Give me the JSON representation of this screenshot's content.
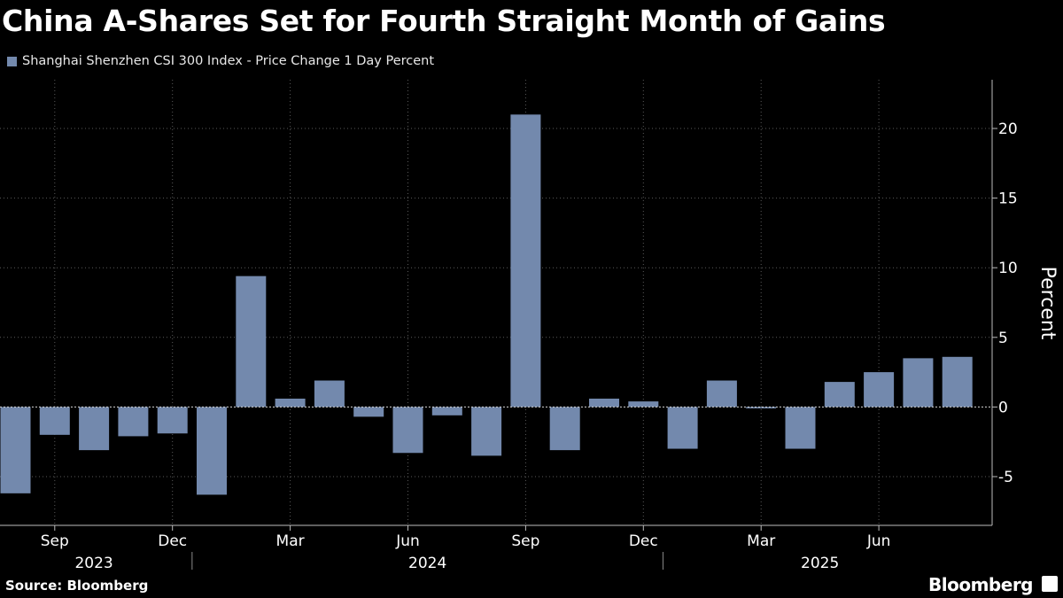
{
  "chart_data": {
    "type": "bar",
    "title": "China A-Shares Set for Fourth Straight Month of Gains",
    "legend": [
      "Shanghai Shenzhen CSI 300 Index - Price Change 1 Day Percent"
    ],
    "ylabel": "Percent",
    "ylim": [
      -8.5,
      23.5
    ],
    "yticks": [
      -5,
      0,
      5,
      10,
      15,
      20
    ],
    "grid": true,
    "legend_placement": "top-left",
    "color": "#7389ad",
    "categories": [
      "2023-08",
      "2023-09",
      "2023-10",
      "2023-11",
      "2023-12",
      "2024-01",
      "2024-02",
      "2024-03",
      "2024-04",
      "2024-05",
      "2024-06",
      "2024-07",
      "2024-08",
      "2024-09",
      "2024-10",
      "2024-11",
      "2024-12",
      "2025-01",
      "2025-02",
      "2025-03",
      "2025-04",
      "2025-05",
      "2025-06",
      "2025-07",
      "2025-08"
    ],
    "values": [
      -6.2,
      -2.0,
      -3.1,
      -2.1,
      -1.9,
      -6.3,
      9.4,
      0.6,
      1.9,
      -0.7,
      -3.3,
      -0.6,
      -3.5,
      21.0,
      -3.1,
      0.6,
      0.4,
      -3.0,
      1.9,
      -0.1,
      -3.0,
      1.8,
      2.5,
      3.5,
      3.6
    ],
    "month_ticks": [
      {
        "label": "Sep",
        "index": 1
      },
      {
        "label": "Dec",
        "index": 4
      },
      {
        "label": "Mar",
        "index": 7
      },
      {
        "label": "Jun",
        "index": 10
      },
      {
        "label": "Sep",
        "index": 13
      },
      {
        "label": "Dec",
        "index": 16
      },
      {
        "label": "Mar",
        "index": 19
      },
      {
        "label": "Jun",
        "index": 22
      }
    ],
    "year_labels": [
      {
        "label": "2023",
        "start": 0,
        "end": 4
      },
      {
        "label": "2024",
        "start": 5,
        "end": 16
      },
      {
        "label": "2025",
        "start": 17,
        "end": 24
      }
    ]
  },
  "footer": {
    "source": "Source: Bloomberg",
    "brand": "Bloomberg"
  }
}
